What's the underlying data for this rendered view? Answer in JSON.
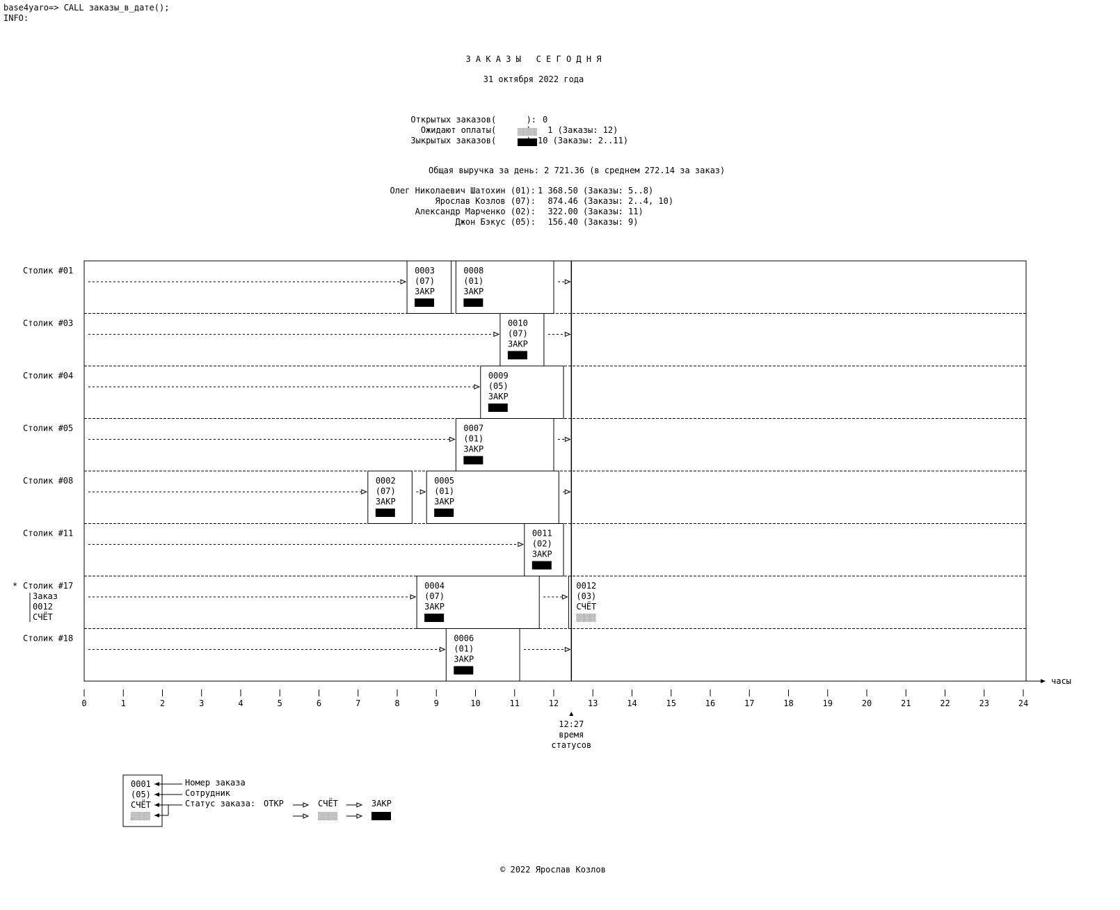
{
  "console": {
    "prompt": "base4yaro=> CALL заказы_в_дате();",
    "info": "INFO:"
  },
  "report": {
    "title": "З А К А З Ы   С Е Г О Д Н Я",
    "date": "31 октября 2022 года",
    "summary": [
      {
        "label": "Открытых заказов",
        "swatch": "open",
        "value": "0"
      },
      {
        "label": "Ожидают оплаты",
        "swatch": "bill",
        "value": " 1 (Заказы: 12)"
      },
      {
        "label": "Зыкрытых заказов",
        "swatch": "closed",
        "value": "10 (Заказы: 2..11)"
      }
    ],
    "revenue": "Общая выручка за день: 2 721.36 (в среднем 272.14 за заказ)",
    "employees": [
      {
        "name": "Олег Николаевич Шатохин (01):",
        "value": "1 368.50 (Заказы: 5..8)"
      },
      {
        "name": "Ярослав Козлов (07):",
        "value": "  874.46 (Заказы: 2..4, 10)"
      },
      {
        "name": "Александр Марченко (02):",
        "value": "  322.00 (Заказы: 11)"
      },
      {
        "name": "Джон Бэкус (05):",
        "value": "  156.40 (Заказы: 9)"
      }
    ]
  },
  "timeline": {
    "hours": [
      "0",
      "1",
      "2",
      "3",
      "4",
      "5",
      "6",
      "7",
      "8",
      "9",
      "10",
      "11",
      "12",
      "13",
      "14",
      "15",
      "16",
      "17",
      "18",
      "19",
      "20",
      "21",
      "22",
      "23",
      "24"
    ],
    "axis_label": "часы",
    "now_value": 12.45,
    "now_time": "12:27",
    "now_label1": "время",
    "now_label2": "статусов",
    "tables": [
      {
        "label": "Столик #01",
        "orders": [
          {
            "start": 8.25,
            "end": 9.38,
            "num": "0003",
            "emp": "(07)",
            "status": "ЗАКР",
            "swatch": "closed"
          },
          {
            "start": 9.5,
            "end": 12.0,
            "num": "0008",
            "emp": "(01)",
            "status": "ЗАКР",
            "swatch": "closed"
          }
        ]
      },
      {
        "label": "Столик #03",
        "orders": [
          {
            "start": 10.63,
            "end": 11.75,
            "num": "0010",
            "emp": "(07)",
            "status": "ЗАКР",
            "swatch": "closed"
          }
        ]
      },
      {
        "label": "Столик #04",
        "orders": [
          {
            "start": 10.13,
            "end": 12.25,
            "num": "0009",
            "emp": "(05)",
            "status": "ЗАКР",
            "swatch": "closed"
          }
        ]
      },
      {
        "label": "Столик #05",
        "orders": [
          {
            "start": 9.5,
            "end": 12.0,
            "num": "0007",
            "emp": "(01)",
            "status": "ЗАКР",
            "swatch": "closed"
          }
        ]
      },
      {
        "label": "Столик #08",
        "orders": [
          {
            "start": 7.25,
            "end": 8.38,
            "num": "0002",
            "emp": "(07)",
            "status": "ЗАКР",
            "swatch": "closed"
          },
          {
            "start": 8.75,
            "end": 12.13,
            "num": "0005",
            "emp": "(01)",
            "status": "ЗАКР",
            "swatch": "closed"
          }
        ]
      },
      {
        "label": "Столик #11",
        "orders": [
          {
            "start": 11.25,
            "end": 12.25,
            "num": "0011",
            "emp": "(02)",
            "status": "ЗАКР",
            "swatch": "closed"
          }
        ]
      },
      {
        "label": "Столик #17",
        "marker": "*",
        "note": [
          "Заказ",
          "0012",
          "СЧЁТ"
        ],
        "orders": [
          {
            "start": 8.5,
            "end": 11.63,
            "num": "0004",
            "emp": "(07)",
            "status": "ЗАКР",
            "swatch": "closed"
          },
          {
            "start": 12.38,
            "end": null,
            "num": "0012",
            "emp": "(03)",
            "status": "СЧЁТ",
            "swatch": "bill"
          }
        ]
      },
      {
        "label": "Столик #18",
        "orders": [
          {
            "start": 9.25,
            "end": 11.13,
            "num": "0006",
            "emp": "(01)",
            "status": "ЗАКР",
            "swatch": "closed"
          }
        ]
      }
    ]
  },
  "legend": {
    "box_num": "0001",
    "box_emp": "(05)",
    "box_status": "СЧЁТ",
    "label_num": "Номер заказа",
    "label_emp": "Сотрудник",
    "label_status": "Статус заказа:",
    "state_open": "ОТКР",
    "state_bill": "СЧЁТ",
    "state_closed": "ЗАКР"
  },
  "footer": "© 2022 Ярослав Козлов"
}
